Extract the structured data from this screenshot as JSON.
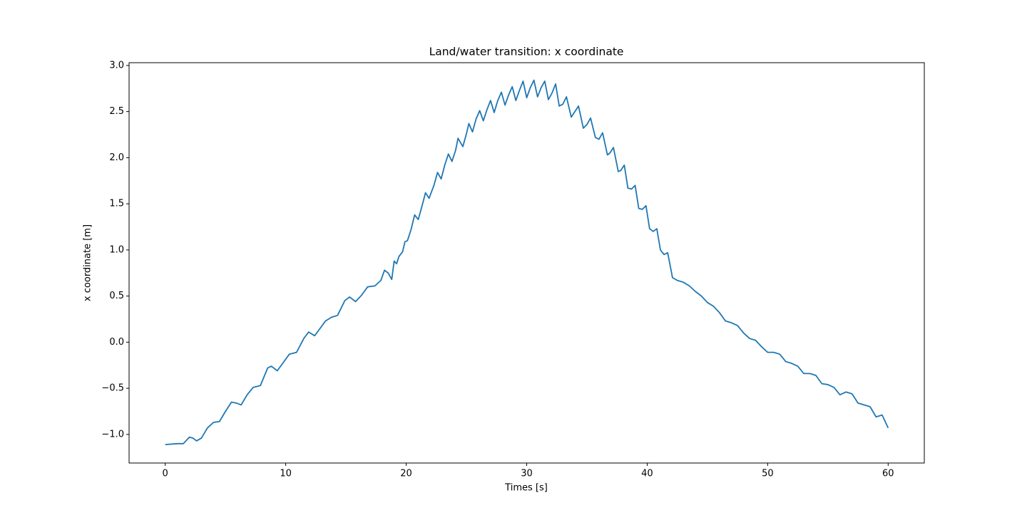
{
  "chart_data": {
    "type": "line",
    "title": "Land/water transition: x coordinate",
    "x_label": "Times [s]",
    "y_label": "x coordinate [m]",
    "color": "#1f77b4",
    "xlim": [
      -3,
      63
    ],
    "ylim": [
      -1.31,
      3.03
    ],
    "xticks": [
      0,
      10,
      20,
      30,
      40,
      50,
      60
    ],
    "yticks": [
      {
        "value": 3,
        "label": "3.0"
      },
      2.5,
      {
        "value": 2,
        "label": "2.0"
      },
      1.5,
      {
        "value": 1,
        "label": "1.0"
      },
      0.5,
      {
        "value": 0,
        "label": "0.0"
      },
      {
        "value": -0.5,
        "label": "−0.5"
      },
      {
        "value": -1,
        "label": "−1.0"
      }
    ],
    "x": [
      0,
      1,
      1.5,
      2,
      2.3,
      2.6,
      3,
      3.5,
      4,
      4.5,
      5,
      5.5,
      5.9,
      6.3,
      6.8,
      7.3,
      7.9,
      8.5,
      8.8,
      9.3,
      9.8,
      10.3,
      10.9,
      11.5,
      11.9,
      12.4,
      12.8,
      13.3,
      13.8,
      14.3,
      14.9,
      15.3,
      15.8,
      16.3,
      16.8,
      17.4,
      17.9,
      18.2,
      18.5,
      18.8,
      19,
      19.2,
      19.4,
      19.7,
      19.9,
      20.1,
      20.4,
      20.7,
      21,
      21.3,
      21.6,
      21.9,
      22.3,
      22.6,
      22.9,
      23.2,
      23.5,
      23.8,
      24.1,
      24.3,
      24.7,
      25,
      25.2,
      25.5,
      25.8,
      26.1,
      26.4,
      26.7,
      27,
      27.3,
      27.6,
      27.9,
      28.2,
      28.5,
      28.8,
      29.1,
      29.4,
      29.7,
      30,
      30.3,
      30.6,
      30.9,
      31.2,
      31.5,
      31.8,
      32.1,
      32.4,
      32.7,
      33,
      33.3,
      33.7,
      34,
      34.3,
      34.7,
      35,
      35.3,
      35.7,
      36,
      36.3,
      36.7,
      36.9,
      37.2,
      37.6,
      37.8,
      38.1,
      38.4,
      38.7,
      39,
      39.3,
      39.6,
      39.9,
      40.2,
      40.5,
      40.8,
      41.1,
      41.4,
      41.7,
      42.1,
      42.5,
      43,
      43.5,
      44,
      44.5,
      45,
      45.5,
      46,
      46.5,
      47,
      47.5,
      48,
      48.5,
      49,
      49.5,
      50,
      50.5,
      51,
      51.5,
      52,
      52.5,
      53,
      53.5,
      54,
      54.5,
      55,
      55.5,
      56,
      56.5,
      57,
      57.5,
      58,
      58.5,
      59,
      59.5,
      60
    ],
    "values": [
      -1.11,
      -1.1,
      -1.1,
      -1.03,
      -1.04,
      -1.07,
      -1.04,
      -0.93,
      -0.87,
      -0.86,
      -0.75,
      -0.65,
      -0.66,
      -0.68,
      -0.57,
      -0.49,
      -0.47,
      -0.28,
      -0.26,
      -0.31,
      -0.22,
      -0.13,
      -0.11,
      0.04,
      0.11,
      0.07,
      0.14,
      0.23,
      0.27,
      0.29,
      0.45,
      0.49,
      0.44,
      0.51,
      0.6,
      0.61,
      0.67,
      0.78,
      0.75,
      0.68,
      0.88,
      0.85,
      0.93,
      0.98,
      1.09,
      1.1,
      1.22,
      1.38,
      1.33,
      1.47,
      1.62,
      1.56,
      1.7,
      1.84,
      1.77,
      1.92,
      2.04,
      1.96,
      2.08,
      2.21,
      2.12,
      2.26,
      2.37,
      2.28,
      2.42,
      2.51,
      2.4,
      2.52,
      2.62,
      2.49,
      2.62,
      2.71,
      2.57,
      2.68,
      2.77,
      2.62,
      2.73,
      2.83,
      2.65,
      2.76,
      2.84,
      2.66,
      2.76,
      2.83,
      2.63,
      2.7,
      2.8,
      2.56,
      2.58,
      2.66,
      2.44,
      2.5,
      2.56,
      2.32,
      2.36,
      2.43,
      2.22,
      2.2,
      2.27,
      2.03,
      2.05,
      2.11,
      1.85,
      1.86,
      1.92,
      1.67,
      1.66,
      1.7,
      1.45,
      1.44,
      1.48,
      1.23,
      1.2,
      1.23,
      1,
      0.95,
      0.97,
      0.7,
      0.67,
      0.65,
      0.61,
      0.55,
      0.5,
      0.43,
      0.39,
      0.32,
      0.23,
      0.21,
      0.18,
      0.1,
      0.04,
      0.02,
      -0.05,
      -0.11,
      -0.11,
      -0.13,
      -0.21,
      -0.23,
      -0.26,
      -0.34,
      -0.34,
      -0.36,
      -0.45,
      -0.46,
      -0.49,
      -0.57,
      -0.54,
      -0.56,
      -0.66,
      -0.68,
      -0.7,
      -0.81,
      -0.79,
      -0.93
    ]
  }
}
